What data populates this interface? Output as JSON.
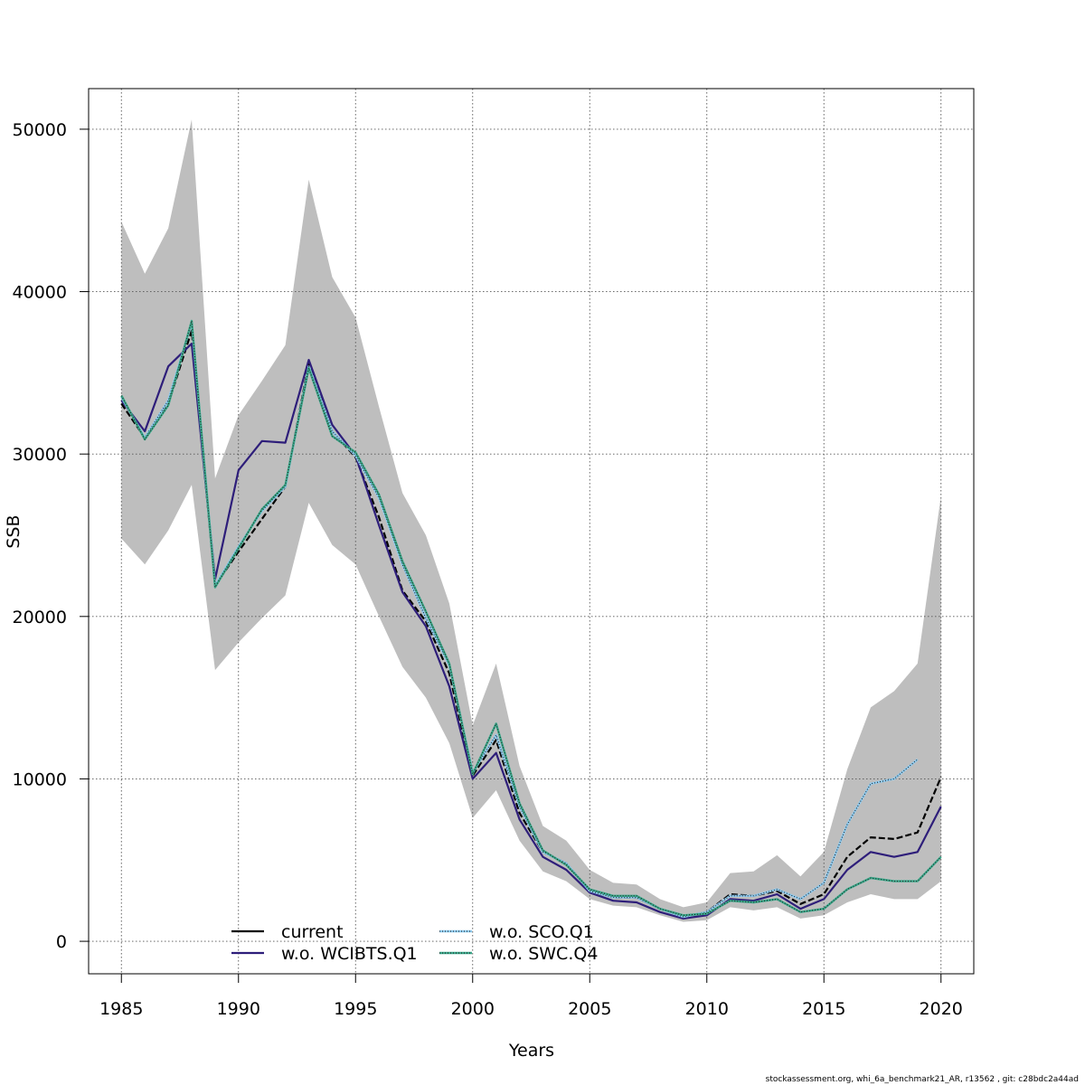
{
  "chart_data": {
    "type": "line",
    "xlabel": "Years",
    "ylabel": "SSB",
    "xlim": [
      1983.6,
      2021.4
    ],
    "ylim": [
      -2000,
      52500
    ],
    "x_ticks": [
      1985,
      1990,
      1995,
      2000,
      2005,
      2010,
      2015,
      2020
    ],
    "y_ticks": [
      0,
      10000,
      20000,
      30000,
      40000,
      50000
    ],
    "grid": true,
    "legend_position": "bottom-center",
    "footer": "stockassessment.org, whi_6a_benchmark21_AR, r13562 , git: c28bdc2a44ad",
    "band": {
      "color": "#bebebe",
      "x": [
        1985,
        1986,
        1987,
        1988,
        1989,
        1990,
        1991,
        1992,
        1993,
        1994,
        1995,
        1996,
        1997,
        1998,
        1999,
        2000,
        2001,
        2002,
        2003,
        2004,
        2005,
        2006,
        2007,
        2008,
        2009,
        2010,
        2011,
        2012,
        2013,
        2014,
        2015,
        2016,
        2017,
        2018,
        2019,
        2020
      ],
      "upper": [
        44300,
        41100,
        43900,
        50600,
        28500,
        32400,
        34500,
        36700,
        46900,
        40900,
        38400,
        32900,
        27600,
        25000,
        20800,
        13300,
        17100,
        10800,
        7100,
        6200,
        4400,
        3600,
        3500,
        2600,
        2100,
        2400,
        4200,
        4300,
        5300,
        4000,
        5500,
        10600,
        14400,
        15400,
        17100,
        27400
      ],
      "lower": [
        24800,
        23200,
        25300,
        28100,
        16700,
        18400,
        19900,
        21300,
        27000,
        24400,
        23200,
        20000,
        16900,
        15000,
        12200,
        7600,
        9300,
        6200,
        4300,
        3700,
        2600,
        2200,
        2100,
        1600,
        1200,
        1300,
        2100,
        1900,
        2100,
        1400,
        1600,
        2400,
        2900,
        2600,
        2600,
        3700
      ]
    },
    "x": [
      1985,
      1986,
      1987,
      1988,
      1989,
      1990,
      1991,
      1992,
      1993,
      1994,
      1995,
      1996,
      1997,
      1998,
      1999,
      2000,
      2001,
      2002,
      2003,
      2004,
      2005,
      2006,
      2007,
      2008,
      2009,
      2010,
      2011,
      2012,
      2013,
      2014,
      2015,
      2016,
      2017,
      2018,
      2019,
      2020
    ],
    "series": [
      {
        "name": "current",
        "color": "#000000",
        "style": "solid",
        "values": [
          33100,
          31000,
          33100,
          37600,
          21900,
          24000,
          26000,
          28000,
          35600,
          31400,
          29800,
          26100,
          21600,
          19700,
          16500,
          10200,
          12400,
          7900,
          5500,
          4800,
          3100,
          2700,
          2700,
          2000,
          1500,
          1800,
          2900,
          2800,
          3100,
          2300,
          2900,
          5200,
          6400,
          6300,
          6700,
          10100
        ]
      },
      {
        "name": "w.o. WCIBTS.Q1",
        "color": "#2e1e7a",
        "style": "solid",
        "values": [
          33300,
          31400,
          35400,
          36800,
          22300,
          29000,
          30800,
          30700,
          35800,
          31800,
          29900,
          25600,
          21500,
          19400,
          15700,
          10000,
          11600,
          7500,
          5200,
          4400,
          3000,
          2500,
          2400,
          1800,
          1400,
          1600,
          2600,
          2500,
          2900,
          2000,
          2600,
          4400,
          5500,
          5200,
          5500,
          8300
        ]
      },
      {
        "name": "w.o. SCO.Q1",
        "color": "#8ecbf0",
        "style": "dotted",
        "values": [
          33500,
          31000,
          33300,
          38100,
          21900,
          24300,
          26500,
          28000,
          35400,
          31400,
          29900,
          27300,
          23200,
          19900,
          17000,
          10400,
          12700,
          8300,
          5500,
          4800,
          3100,
          2700,
          2700,
          2000,
          1500,
          1800,
          2800,
          2800,
          3200,
          2600,
          3600,
          7200,
          9700,
          10000,
          11200,
          null
        ]
      },
      {
        "name": "w.o. SWC.Q4",
        "color": "#3aa88a",
        "style": "dotted",
        "values": [
          33600,
          30900,
          33000,
          38200,
          21800,
          24200,
          26600,
          28100,
          35300,
          31100,
          30100,
          27500,
          23400,
          20300,
          17100,
          10300,
          13400,
          8500,
          5600,
          4700,
          3200,
          2800,
          2800,
          2000,
          1600,
          1700,
          2500,
          2400,
          2600,
          1800,
          2000,
          3200,
          3900,
          3700,
          3700,
          5200
        ]
      }
    ]
  }
}
